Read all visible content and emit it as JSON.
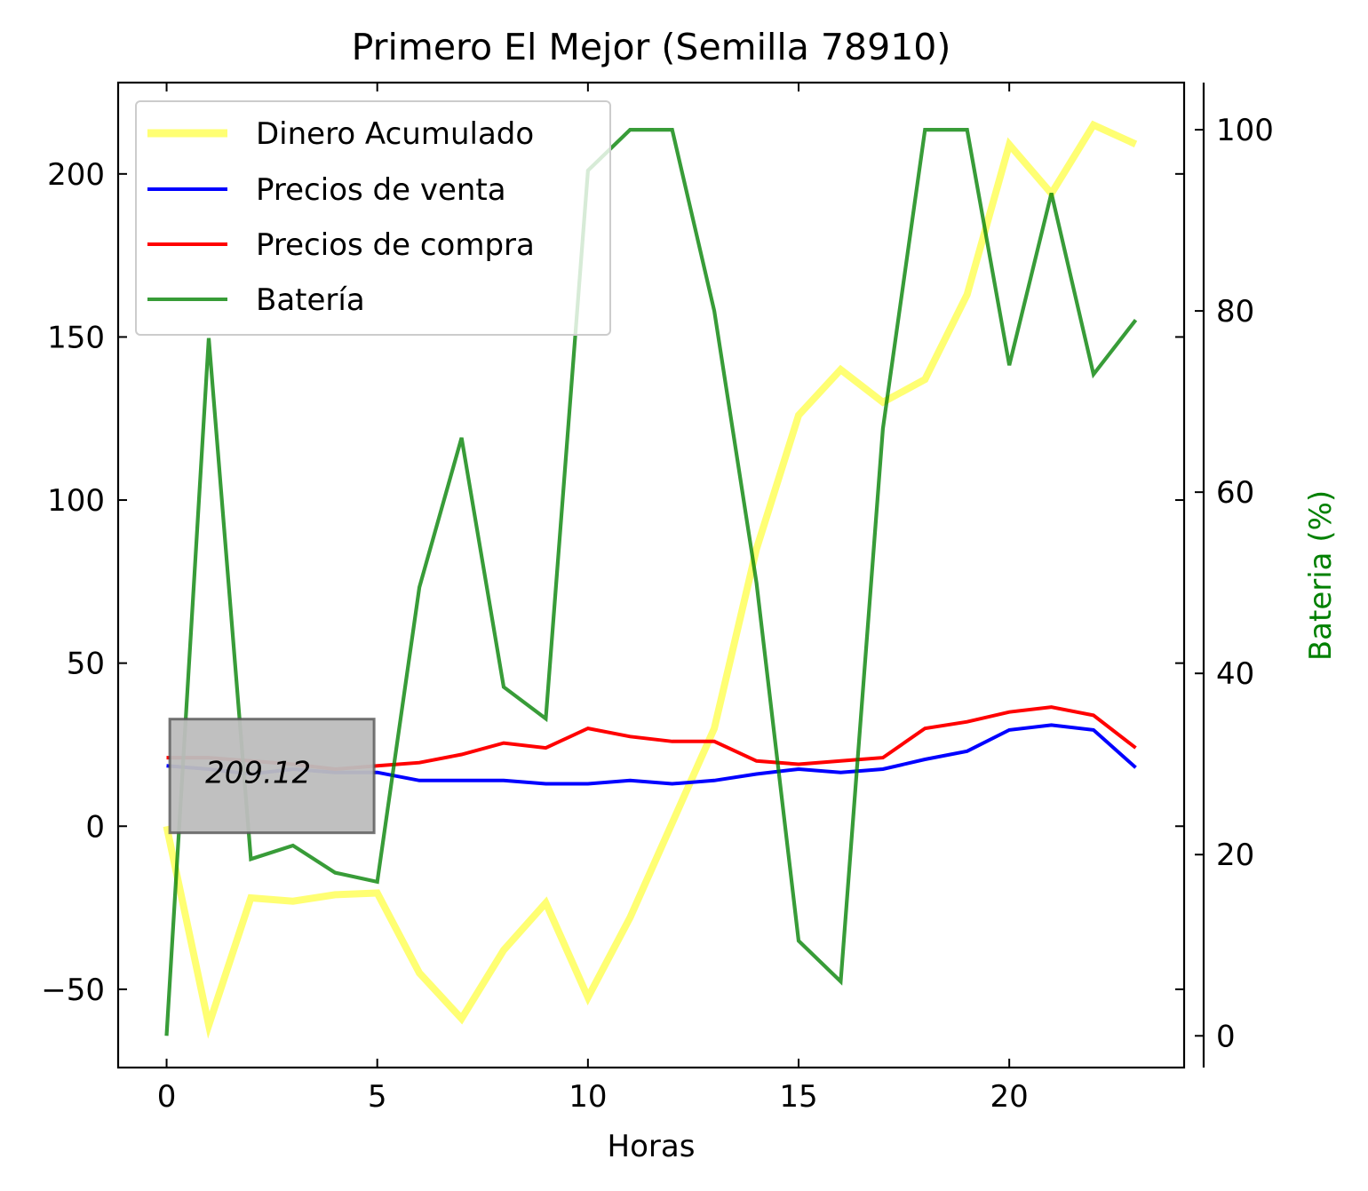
{
  "chart_data": {
    "type": "line",
    "title": "Primero El Mejor (Semilla 78910)",
    "xlabel": "Horas",
    "ylabel": "",
    "y2label": "Bateria (%)",
    "x": [
      0,
      1,
      2,
      3,
      4,
      5,
      6,
      7,
      8,
      9,
      10,
      11,
      12,
      13,
      14,
      15,
      16,
      17,
      18,
      19,
      20,
      21,
      22,
      23
    ],
    "xlim": [
      -1.15,
      24.15
    ],
    "ylim": [
      -74,
      228
    ],
    "y2lim": [
      -3.5,
      105.2
    ],
    "xticks": [
      0,
      5,
      10,
      15,
      20
    ],
    "yticks": [
      -50,
      0,
      50,
      100,
      150,
      200
    ],
    "y2ticks": [
      0,
      20,
      40,
      60,
      80,
      100
    ],
    "grid": false,
    "legend_position": "upper left",
    "series": [
      {
        "name": "Dinero Acumulado",
        "axis": "left",
        "color": "#ffff00",
        "alpha": 0.55,
        "values": [
          0,
          -61,
          -22,
          -23,
          -21,
          -20.5,
          -45,
          -59,
          -38,
          -23.5,
          -52.5,
          -28,
          1,
          30,
          85,
          126,
          140,
          130,
          137,
          163,
          209,
          194,
          215,
          209.12
        ]
      },
      {
        "name": "Precios de venta",
        "axis": "left",
        "color": "#0000ff",
        "alpha": 1,
        "values": [
          18.5,
          17.5,
          16,
          17.5,
          16.5,
          16.5,
          14,
          14,
          14,
          13,
          13,
          14,
          13,
          14,
          16,
          17.5,
          16.5,
          17.5,
          20.5,
          23,
          29.5,
          31,
          29.5,
          18
        ]
      },
      {
        "name": "Precios de compra",
        "axis": "left",
        "color": "#ff0000",
        "alpha": 1,
        "values": [
          21,
          21,
          20,
          19,
          17.5,
          18.5,
          19.5,
          22,
          25.5,
          24,
          30,
          27.5,
          26,
          26,
          20,
          19,
          20,
          21,
          30,
          32,
          35,
          36.5,
          34,
          24
        ]
      },
      {
        "name": "Batería",
        "axis": "right",
        "color": "#008000",
        "alpha": 0.78,
        "values": [
          0,
          77,
          19.5,
          21,
          18,
          17,
          49.5,
          66,
          38.5,
          35,
          95.5,
          100,
          100,
          80,
          50,
          10.5,
          6,
          67,
          100,
          100,
          74,
          93,
          73,
          79
        ]
      }
    ],
    "annotations": [
      {
        "text": "209.12",
        "x": 2.5,
        "y": 16.5,
        "box_color": "#bdbdbd"
      }
    ]
  }
}
